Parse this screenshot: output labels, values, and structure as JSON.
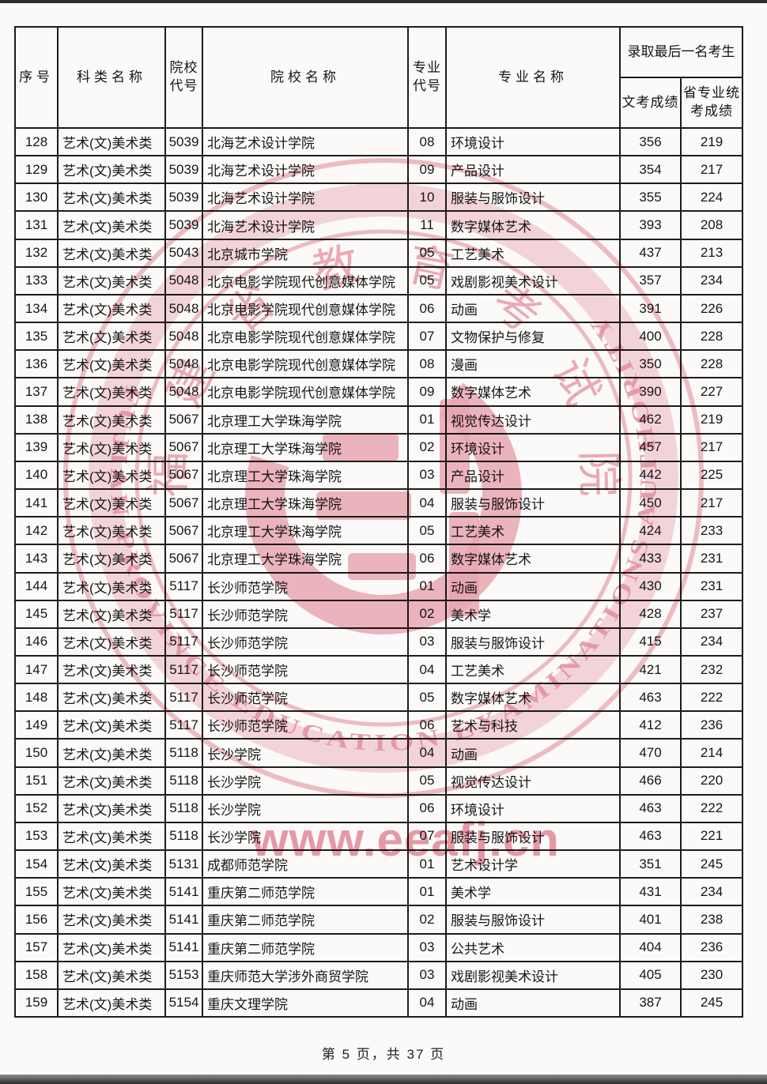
{
  "page": {
    "footer": "第 5 页，共 37 页"
  },
  "table": {
    "columns": {
      "serial": "序号",
      "category": "科类名称",
      "college_code": "院校代号",
      "college_name": "院校名称",
      "major_code": "专业代号",
      "major_name": "专业名称",
      "last_admitted_group": "录取最后一名考生",
      "written_score": "文考成绩",
      "provincial_art_score": "省专业统考成绩"
    },
    "rows": [
      [
        "128",
        "艺术(文)美术类",
        "5039",
        "北海艺术设计学院",
        "08",
        "环境设计",
        "356",
        "219"
      ],
      [
        "129",
        "艺术(文)美术类",
        "5039",
        "北海艺术设计学院",
        "09",
        "产品设计",
        "354",
        "217"
      ],
      [
        "130",
        "艺术(文)美术类",
        "5039",
        "北海艺术设计学院",
        "10",
        "服装与服饰设计",
        "355",
        "224"
      ],
      [
        "131",
        "艺术(文)美术类",
        "5039",
        "北海艺术设计学院",
        "11",
        "数字媒体艺术",
        "393",
        "208"
      ],
      [
        "132",
        "艺术(文)美术类",
        "5043",
        "北京城市学院",
        "05",
        "工艺美术",
        "437",
        "213"
      ],
      [
        "133",
        "艺术(文)美术类",
        "5048",
        "北京电影学院现代创意媒体学院",
        "05",
        "戏剧影视美术设计",
        "357",
        "234"
      ],
      [
        "134",
        "艺术(文)美术类",
        "5048",
        "北京电影学院现代创意媒体学院",
        "06",
        "动画",
        "391",
        "226"
      ],
      [
        "135",
        "艺术(文)美术类",
        "5048",
        "北京电影学院现代创意媒体学院",
        "07",
        "文物保护与修复",
        "400",
        "228"
      ],
      [
        "136",
        "艺术(文)美术类",
        "5048",
        "北京电影学院现代创意媒体学院",
        "08",
        "漫画",
        "350",
        "228"
      ],
      [
        "137",
        "艺术(文)美术类",
        "5048",
        "北京电影学院现代创意媒体学院",
        "09",
        "数字媒体艺术",
        "390",
        "227"
      ],
      [
        "138",
        "艺术(文)美术类",
        "5067",
        "北京理工大学珠海学院",
        "01",
        "视觉传达设计",
        "462",
        "219"
      ],
      [
        "139",
        "艺术(文)美术类",
        "5067",
        "北京理工大学珠海学院",
        "02",
        "环境设计",
        "457",
        "217"
      ],
      [
        "140",
        "艺术(文)美术类",
        "5067",
        "北京理工大学珠海学院",
        "03",
        "产品设计",
        "442",
        "225"
      ],
      [
        "141",
        "艺术(文)美术类",
        "5067",
        "北京理工大学珠海学院",
        "04",
        "服装与服饰设计",
        "450",
        "217"
      ],
      [
        "142",
        "艺术(文)美术类",
        "5067",
        "北京理工大学珠海学院",
        "05",
        "工艺美术",
        "424",
        "233"
      ],
      [
        "143",
        "艺术(文)美术类",
        "5067",
        "北京理工大学珠海学院",
        "06",
        "数字媒体艺术",
        "433",
        "231"
      ],
      [
        "144",
        "艺术(文)美术类",
        "5117",
        "长沙师范学院",
        "01",
        "动画",
        "430",
        "231"
      ],
      [
        "145",
        "艺术(文)美术类",
        "5117",
        "长沙师范学院",
        "02",
        "美术学",
        "428",
        "237"
      ],
      [
        "146",
        "艺术(文)美术类",
        "5117",
        "长沙师范学院",
        "03",
        "服装与服饰设计",
        "415",
        "234"
      ],
      [
        "147",
        "艺术(文)美术类",
        "5117",
        "长沙师范学院",
        "04",
        "工艺美术",
        "421",
        "232"
      ],
      [
        "148",
        "艺术(文)美术类",
        "5117",
        "长沙师范学院",
        "05",
        "数字媒体艺术",
        "463",
        "222"
      ],
      [
        "149",
        "艺术(文)美术类",
        "5117",
        "长沙师范学院",
        "06",
        "艺术与科技",
        "412",
        "236"
      ],
      [
        "150",
        "艺术(文)美术类",
        "5118",
        "长沙学院",
        "04",
        "动画",
        "470",
        "214"
      ],
      [
        "151",
        "艺术(文)美术类",
        "5118",
        "长沙学院",
        "05",
        "视觉传达设计",
        "466",
        "220"
      ],
      [
        "152",
        "艺术(文)美术类",
        "5118",
        "长沙学院",
        "06",
        "环境设计",
        "463",
        "222"
      ],
      [
        "153",
        "艺术(文)美术类",
        "5118",
        "长沙学院",
        "07",
        "服装与服饰设计",
        "463",
        "221"
      ],
      [
        "154",
        "艺术(文)美术类",
        "5131",
        "成都师范学院",
        "01",
        "艺术设计学",
        "351",
        "245"
      ],
      [
        "155",
        "艺术(文)美术类",
        "5141",
        "重庆第二师范学院",
        "01",
        "美术学",
        "431",
        "234"
      ],
      [
        "156",
        "艺术(文)美术类",
        "5141",
        "重庆第二师范学院",
        "02",
        "服装与服饰设计",
        "401",
        "238"
      ],
      [
        "157",
        "艺术(文)美术类",
        "5141",
        "重庆第二师范学院",
        "03",
        "公共艺术",
        "404",
        "236"
      ],
      [
        "158",
        "艺术(文)美术类",
        "5153",
        "重庆师范大学涉外商贸学院",
        "03",
        "戏剧影视美术设计",
        "405",
        "230"
      ],
      [
        "159",
        "艺术(文)美术类",
        "5154",
        "重庆文理学院",
        "04",
        "动画",
        "387",
        "245"
      ]
    ]
  },
  "watermark": {
    "url_text": "www.eeafj.cn",
    "seal_chars": "福建省教育考试院",
    "ring_text": "FUJIAN PROVINCE EDUCATION EXAMINATIONS AUTHORITY",
    "color": "#ecaab6",
    "text_color": "#e897a6"
  }
}
